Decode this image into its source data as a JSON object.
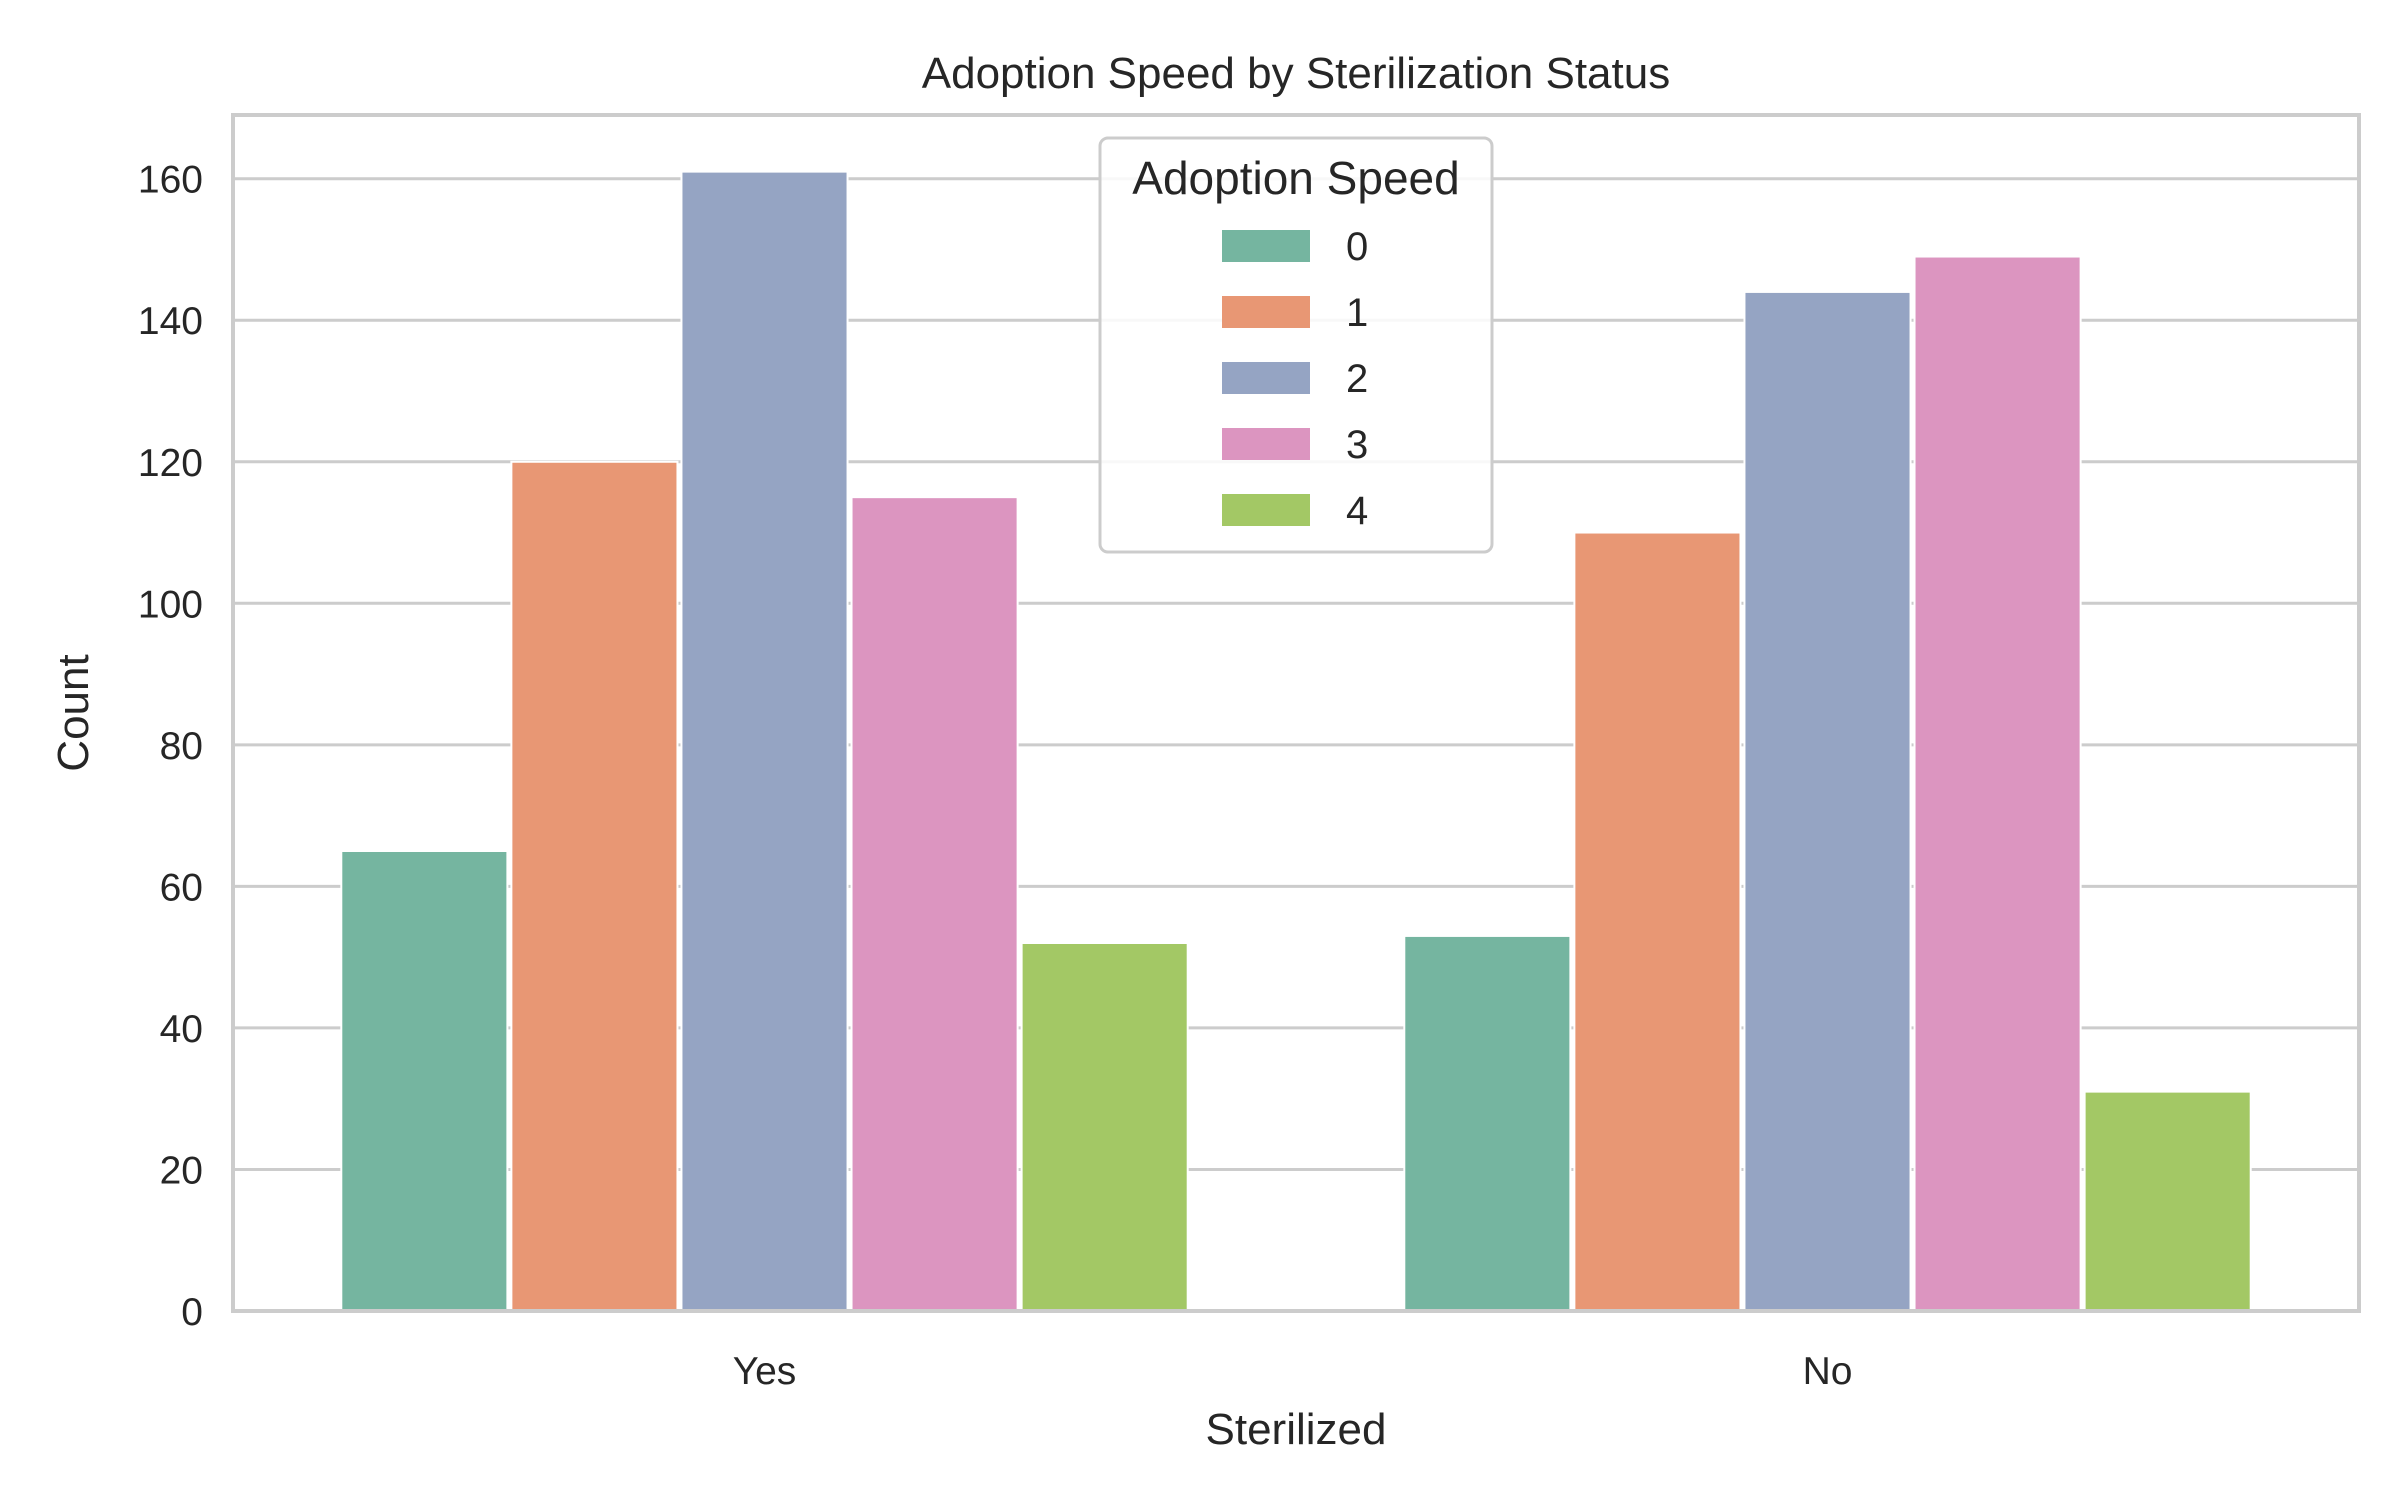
{
  "chart_data": {
    "type": "bar",
    "title": "Adoption Speed by Sterilization Status",
    "xlabel": "Sterilized",
    "ylabel": "Count",
    "categories": [
      "Yes",
      "No"
    ],
    "ylim": [
      0,
      169
    ],
    "yticks": [
      0,
      20,
      40,
      60,
      80,
      100,
      120,
      140,
      160
    ],
    "grid": true,
    "legend": {
      "title": "Adoption Speed",
      "placement": "upper-center"
    },
    "series": [
      {
        "name": "0",
        "values": [
          65,
          53
        ],
        "color": "#75b5a0"
      },
      {
        "name": "1",
        "values": [
          120,
          110
        ],
        "color": "#e89774"
      },
      {
        "name": "2",
        "values": [
          161,
          144
        ],
        "color": "#95a4c3"
      },
      {
        "name": "3",
        "values": [
          115,
          149
        ],
        "color": "#dc95c0"
      },
      {
        "name": "4",
        "values": [
          52,
          31
        ],
        "color": "#a3c865"
      }
    ]
  }
}
